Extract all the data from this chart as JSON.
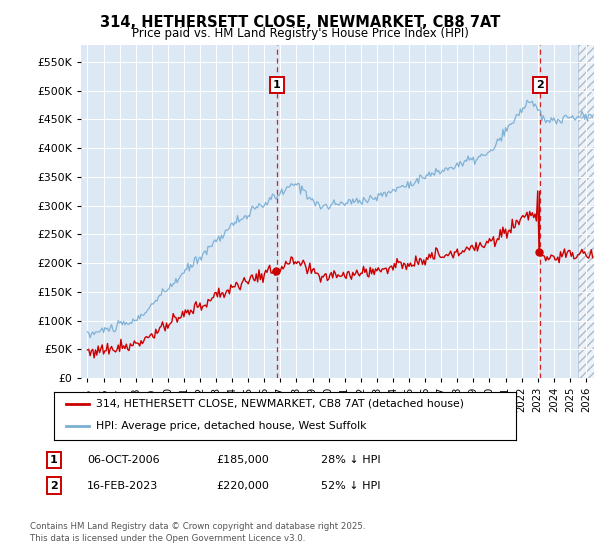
{
  "title": "314, HETHERSETT CLOSE, NEWMARKET, CB8 7AT",
  "subtitle": "Price paid vs. HM Land Registry's House Price Index (HPI)",
  "legend_line1": "314, HETHERSETT CLOSE, NEWMARKET, CB8 7AT (detached house)",
  "legend_line2": "HPI: Average price, detached house, West Suffolk",
  "annotation1_date": "06-OCT-2006",
  "annotation1_price": "£185,000",
  "annotation1_note": "28% ↓ HPI",
  "annotation2_date": "16-FEB-2023",
  "annotation2_price": "£220,000",
  "annotation2_note": "52% ↓ HPI",
  "footer": "Contains HM Land Registry data © Crown copyright and database right 2025.\nThis data is licensed under the Open Government Licence v3.0.",
  "hpi_line_color": "#7bafd4",
  "price_line_color": "#cc0000",
  "vline_color": "#cc0000",
  "annotation_box_color": "#cc0000",
  "plot_bg_color": "#dde8f5",
  "ylim_min": 0,
  "ylim_max": 580000,
  "sale1_year": 2006.78,
  "sale1_price": 185000,
  "sale2_year": 2023.12,
  "sale2_price": 220000,
  "hpi_seed": 10,
  "price_seed": 77
}
